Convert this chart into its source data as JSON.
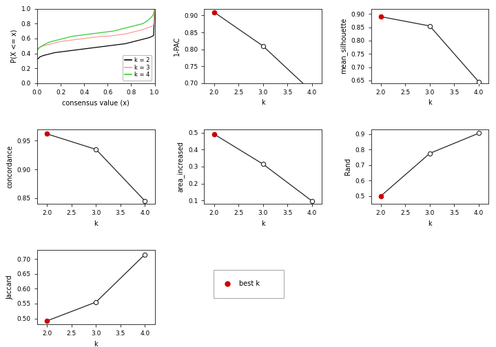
{
  "ecdf": {
    "k2": {
      "x": [
        0.0,
        0.001,
        0.01,
        0.02,
        0.05,
        0.1,
        0.15,
        0.2,
        0.25,
        0.3,
        0.35,
        0.4,
        0.45,
        0.5,
        0.55,
        0.6,
        0.65,
        0.7,
        0.75,
        0.8,
        0.85,
        0.9,
        0.95,
        0.98,
        0.99,
        1.0
      ],
      "y": [
        0.0,
        0.32,
        0.33,
        0.35,
        0.37,
        0.39,
        0.41,
        0.42,
        0.43,
        0.44,
        0.45,
        0.46,
        0.47,
        0.48,
        0.49,
        0.5,
        0.51,
        0.52,
        0.53,
        0.55,
        0.57,
        0.59,
        0.61,
        0.63,
        0.64,
        1.0
      ]
    },
    "k3": {
      "x": [
        0.0,
        0.001,
        0.01,
        0.02,
        0.05,
        0.1,
        0.15,
        0.2,
        0.25,
        0.3,
        0.35,
        0.4,
        0.45,
        0.5,
        0.55,
        0.6,
        0.65,
        0.7,
        0.75,
        0.8,
        0.85,
        0.9,
        0.95,
        0.98,
        0.99,
        1.0
      ],
      "y": [
        0.0,
        0.46,
        0.47,
        0.48,
        0.5,
        0.52,
        0.54,
        0.56,
        0.57,
        0.58,
        0.59,
        0.6,
        0.61,
        0.62,
        0.63,
        0.63,
        0.64,
        0.65,
        0.66,
        0.68,
        0.7,
        0.72,
        0.75,
        0.77,
        0.78,
        1.0
      ]
    },
    "k4": {
      "x": [
        0.0,
        0.001,
        0.01,
        0.02,
        0.05,
        0.1,
        0.15,
        0.2,
        0.25,
        0.3,
        0.35,
        0.4,
        0.45,
        0.5,
        0.55,
        0.6,
        0.65,
        0.7,
        0.75,
        0.8,
        0.85,
        0.9,
        0.92,
        0.94,
        0.96,
        0.98,
        0.99,
        1.0
      ],
      "y": [
        0.0,
        0.44,
        0.46,
        0.48,
        0.51,
        0.55,
        0.57,
        0.59,
        0.61,
        0.63,
        0.64,
        0.65,
        0.66,
        0.67,
        0.68,
        0.69,
        0.7,
        0.72,
        0.74,
        0.76,
        0.78,
        0.8,
        0.82,
        0.84,
        0.87,
        0.9,
        0.93,
        1.0
      ]
    },
    "xlabel": "consensus value (x)",
    "ylabel": "P(X <= x)",
    "xlim": [
      0.0,
      1.0
    ],
    "ylim": [
      0.0,
      1.0
    ],
    "colors": {
      "k2": "#000000",
      "k3": "#ff9999",
      "k4": "#33cc33"
    },
    "legend_labels": [
      "k = 2",
      "k = 3",
      "k = 4"
    ]
  },
  "pac": {
    "k": [
      2,
      3,
      4
    ],
    "y": [
      0.91,
      0.81,
      0.675
    ],
    "best_k": 2,
    "ylabel": "1-PAC",
    "ylim": [
      0.7,
      0.92
    ],
    "yticks": [
      0.7,
      0.75,
      0.8,
      0.85,
      0.9
    ]
  },
  "silhouette": {
    "k": [
      2,
      3,
      4
    ],
    "y": [
      0.89,
      0.855,
      0.645
    ],
    "best_k": 2,
    "ylabel": "mean_silhouette",
    "ylim": [
      0.64,
      0.92
    ],
    "yticks": [
      0.65,
      0.7,
      0.75,
      0.8,
      0.85,
      0.9
    ]
  },
  "concordance": {
    "k": [
      2,
      3,
      4
    ],
    "y": [
      0.962,
      0.935,
      0.845
    ],
    "best_k": 2,
    "ylabel": "concordance",
    "ylim": [
      0.84,
      0.97
    ],
    "yticks": [
      0.85,
      0.9,
      0.95
    ]
  },
  "area_increased": {
    "k": [
      2,
      3,
      4
    ],
    "y": [
      0.492,
      0.315,
      0.097
    ],
    "best_k": 2,
    "ylabel": "area_increased",
    "ylim": [
      0.08,
      0.52
    ],
    "yticks": [
      0.1,
      0.2,
      0.3,
      0.4,
      0.5
    ]
  },
  "rand": {
    "k": [
      2,
      3,
      4
    ],
    "y": [
      0.5,
      0.775,
      0.905
    ],
    "best_k": 2,
    "ylabel": "Rand",
    "ylim": [
      0.45,
      0.93
    ],
    "yticks": [
      0.5,
      0.6,
      0.7,
      0.8,
      0.9
    ]
  },
  "jaccard": {
    "k": [
      2,
      3,
      4
    ],
    "y": [
      0.492,
      0.555,
      0.715
    ],
    "best_k": 2,
    "ylabel": "Jaccard",
    "ylim": [
      0.48,
      0.73
    ],
    "yticks": [
      0.5,
      0.55,
      0.6,
      0.65,
      0.7
    ]
  },
  "xlabel_k": "k",
  "xlim_k": [
    1.8,
    4.2
  ],
  "xticks_k": [
    2.0,
    2.5,
    3.0,
    3.5,
    4.0
  ],
  "best_k_color": "#cc0000",
  "other_k_color": "#ffffff",
  "line_color": "#222222",
  "marker_edge_color": "#222222",
  "bg_color": "#ffffff",
  "font_size": 7,
  "tick_font_size": 6.5
}
